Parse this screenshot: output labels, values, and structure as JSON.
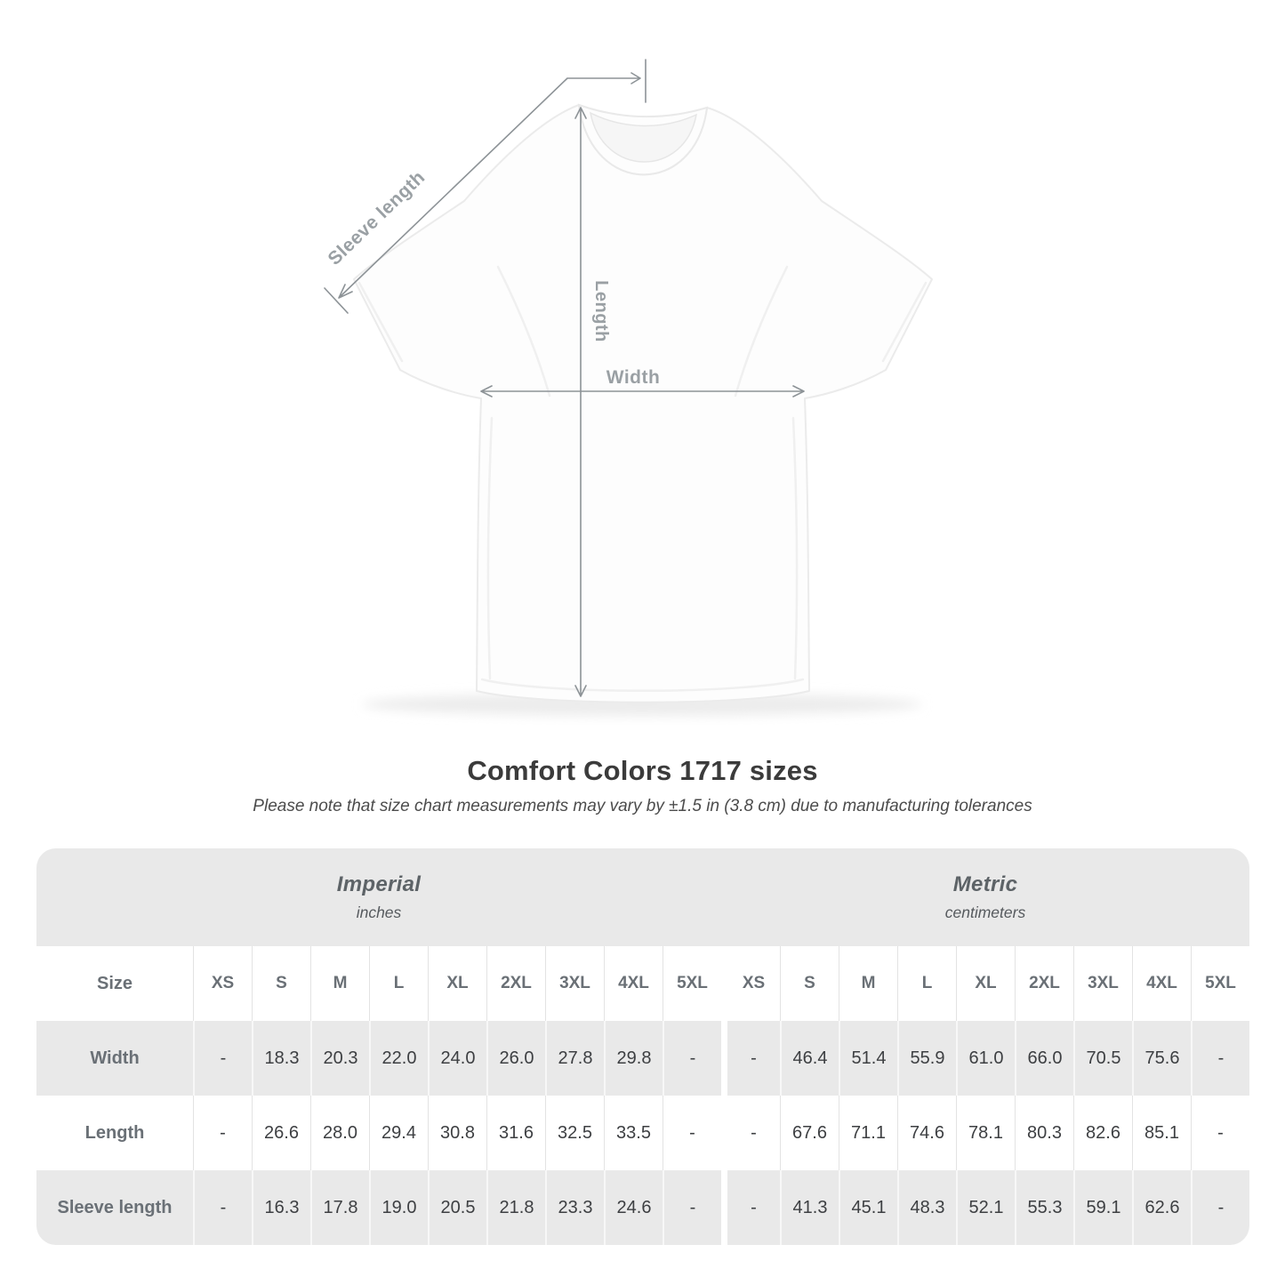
{
  "colors": {
    "band_gray": "#e9e9e9",
    "annotation_line": "#8d9397",
    "annotation_label": "#9aa0a4",
    "header_text": "#6a7076",
    "value_text": "#3d3f42",
    "title_text": "#3b3b3b"
  },
  "diagram": {
    "sleeve_length_label": "Sleeve length",
    "length_label": "Length",
    "width_label": "Width"
  },
  "heading": {
    "title": "Comfort Colors 1717 sizes",
    "subtitle": "Please note that size chart measurements may vary by ±1.5 in (3.8 cm) due to manufacturing tolerances"
  },
  "size_table": {
    "size_col_header": "Size",
    "sections": [
      {
        "label": "Imperial",
        "unit": "inches"
      },
      {
        "label": "Metric",
        "unit": "centimeters"
      }
    ],
    "sizes": [
      "XS",
      "S",
      "M",
      "L",
      "XL",
      "2XL",
      "3XL",
      "4XL",
      "5XL"
    ],
    "rows": [
      {
        "label": "Width",
        "imperial": [
          "-",
          "18.3",
          "20.3",
          "22.0",
          "24.0",
          "26.0",
          "27.8",
          "29.8",
          "-"
        ],
        "metric": [
          "-",
          "46.4",
          "51.4",
          "55.9",
          "61.0",
          "66.0",
          "70.5",
          "75.6",
          "-"
        ]
      },
      {
        "label": "Length",
        "imperial": [
          "-",
          "26.6",
          "28.0",
          "29.4",
          "30.8",
          "31.6",
          "32.5",
          "33.5",
          "-"
        ],
        "metric": [
          "-",
          "67.6",
          "71.1",
          "74.6",
          "78.1",
          "80.3",
          "82.6",
          "85.1",
          "-"
        ]
      },
      {
        "label": "Sleeve length",
        "imperial": [
          "-",
          "16.3",
          "17.8",
          "19.0",
          "20.5",
          "21.8",
          "23.3",
          "24.6",
          "-"
        ],
        "metric": [
          "-",
          "41.3",
          "45.1",
          "48.3",
          "52.1",
          "55.3",
          "59.1",
          "62.6",
          "-"
        ]
      }
    ]
  },
  "chart_data": {
    "type": "table",
    "title": "Comfort Colors 1717 sizes",
    "subtitle": "Please note that size chart measurements may vary by ±1.5 in (3.8 cm) due to manufacturing tolerances",
    "sections": [
      {
        "name": "Imperial",
        "unit": "inches"
      },
      {
        "name": "Metric",
        "unit": "centimeters"
      }
    ],
    "columns": [
      "XS",
      "S",
      "M",
      "L",
      "XL",
      "2XL",
      "3XL",
      "4XL",
      "5XL"
    ],
    "rows": [
      {
        "measurement": "Width",
        "imperial_inches": [
          null,
          18.3,
          20.3,
          22.0,
          24.0,
          26.0,
          27.8,
          29.8,
          null
        ],
        "metric_centimeters": [
          null,
          46.4,
          51.4,
          55.9,
          61.0,
          66.0,
          70.5,
          75.6,
          null
        ]
      },
      {
        "measurement": "Length",
        "imperial_inches": [
          null,
          26.6,
          28.0,
          29.4,
          30.8,
          31.6,
          32.5,
          33.5,
          null
        ],
        "metric_centimeters": [
          null,
          67.6,
          71.1,
          74.6,
          78.1,
          80.3,
          82.6,
          85.1,
          null
        ]
      },
      {
        "measurement": "Sleeve length",
        "imperial_inches": [
          null,
          16.3,
          17.8,
          19.0,
          20.5,
          21.8,
          23.3,
          24.6,
          null
        ],
        "metric_centimeters": [
          null,
          41.3,
          45.1,
          48.3,
          52.1,
          55.3,
          59.1,
          62.6,
          null
        ]
      }
    ]
  }
}
